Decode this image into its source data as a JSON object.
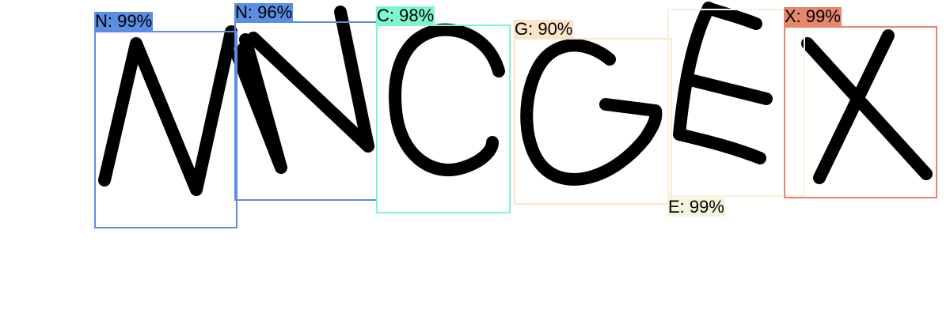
{
  "detections": [
    {
      "text": "N: 99%",
      "char": "N",
      "color": "#5b8de3"
    },
    {
      "text": "N: 96%",
      "char": "N",
      "color": "#5b8de3"
    },
    {
      "text": "C: 98%",
      "char": "C",
      "color": "#7ff5d2"
    },
    {
      "text": "G: 90%",
      "char": "G",
      "color": "#fbe4c8"
    },
    {
      "text": "E: 99%",
      "char": "E",
      "color": "#f4f3dc"
    },
    {
      "text": "X: 99%",
      "char": "X",
      "color": "#e5866d"
    }
  ],
  "captcha_text": "MNCGEX"
}
